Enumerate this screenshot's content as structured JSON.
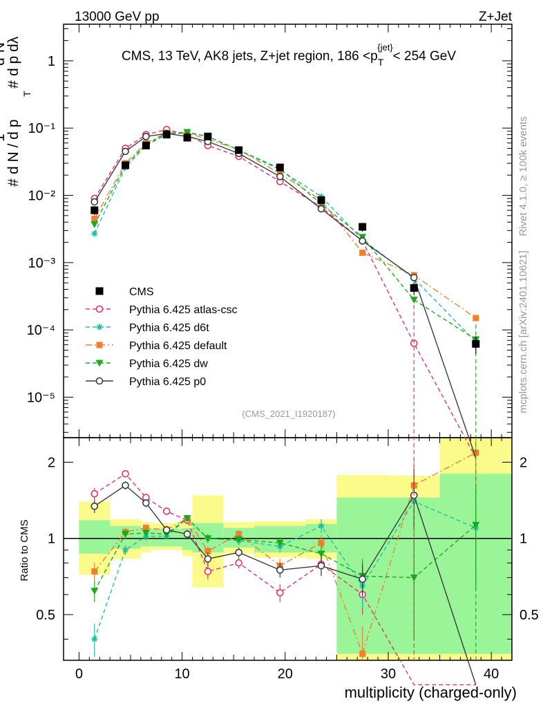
{
  "header": {
    "left": "13000 GeV pp",
    "right": "Z+Jet"
  },
  "side_labels": {
    "rivet": "Rivet 4.1.0, ≥ 100k events",
    "mcplots": "mcplots.cern.ch [arXiv:2401.10621]"
  },
  "colors": {
    "cms": "#000000",
    "atlas_csc": "#e8306a",
    "d6t": "#1fc0a0",
    "default": "#f07f30",
    "dw": "#1aab1a",
    "p0": "#3a3a3a",
    "band_inner": "#99f598",
    "band_outer": "#fbfb8c"
  },
  "chart_data": {
    "type": "line",
    "title": "CMS, 13 TeV, AK8 jets, Z+jet region, 186 <p_T^{jet}< 254 GeV",
    "title_parts": {
      "main": "CMS, 13 TeV, AK8 jets, Z+jet region, 186 <p",
      "sub": "T",
      "sup": "{jet}",
      "tail": "< 254 GeV"
    },
    "xlabel": "multiplicity (charged-only)",
    "ylabel_main": "1/N dN/dλ",
    "ylabel_parts": {
      "one": "1",
      "lhs": "d N / d p",
      "hash": "#",
      "t": "T",
      "top": "d²N",
      "bottom": "d p  dλ"
    },
    "ylabel_ratio": "Ratio to CMS",
    "watermark": "(CMS_2021_I1920187)",
    "xlim": [
      -1.5,
      42
    ],
    "ylim_main": [
      2.5e-06,
      3.5
    ],
    "ylim_ratio": [
      0.33,
      2.5
    ],
    "xticks": [
      0,
      10,
      20,
      30,
      40
    ],
    "xtick_labels": [
      "0",
      "10",
      "20",
      "30",
      "40"
    ],
    "yticks_main": [
      1e-05,
      0.0001,
      0.001,
      0.01,
      0.1,
      1
    ],
    "ytick_labels_main": [
      "10⁻⁵",
      "10⁻⁴",
      "10⁻³",
      "10⁻²",
      "10⁻¹",
      "1"
    ],
    "yticks_ratio": [
      0.5,
      1,
      2
    ],
    "ytick_labels_ratio": [
      "0.5",
      "1",
      "2"
    ],
    "bins": [
      [
        0,
        3
      ],
      [
        3,
        6
      ],
      [
        6,
        7
      ],
      [
        7,
        10
      ],
      [
        10,
        11
      ],
      [
        11,
        14
      ],
      [
        14,
        17
      ],
      [
        17,
        22
      ],
      [
        22,
        25
      ],
      [
        25,
        30
      ],
      [
        30,
        35
      ],
      [
        35,
        42
      ]
    ],
    "x": [
      1.5,
      4.5,
      6.5,
      8.5,
      10.5,
      12.5,
      15.5,
      19.5,
      23.5,
      27.5,
      32.5,
      38.5
    ],
    "band_inner": [
      [
        0.87,
        1.18
      ],
      [
        0.91,
        1.12
      ],
      [
        0.93,
        1.1
      ],
      [
        0.93,
        1.09
      ],
      [
        0.9,
        1.1
      ],
      [
        0.88,
        1.15
      ],
      [
        0.92,
        1.1
      ],
      [
        0.88,
        1.12
      ],
      [
        0.88,
        1.14
      ],
      [
        0.35,
        1.45
      ],
      [
        0.35,
        1.45
      ],
      [
        0.35,
        1.8
      ]
    ],
    "band_outer": [
      [
        0.72,
        1.4
      ],
      [
        0.83,
        1.19
      ],
      [
        0.88,
        1.16
      ],
      [
        0.9,
        1.15
      ],
      [
        0.85,
        1.19
      ],
      [
        0.64,
        1.48
      ],
      [
        0.87,
        1.16
      ],
      [
        0.84,
        1.17
      ],
      [
        0.83,
        1.19
      ],
      [
        0.33,
        1.78
      ],
      [
        0.33,
        1.77
      ],
      [
        0.33,
        2.5
      ]
    ],
    "series": [
      {
        "name": "CMS",
        "key": "cms",
        "style": "data",
        "values": [
          0.006,
          0.028,
          0.055,
          0.08,
          0.072,
          0.075,
          0.047,
          0.026,
          0.0085,
          0.0034,
          0.00042,
          6.2e-05
        ],
        "errors": [
          0.0009,
          0.003,
          0.004,
          0.005,
          0.005,
          0.006,
          0.004,
          0.002,
          0.0009,
          0.0005,
          9e-05,
          1.8e-05
        ]
      },
      {
        "name": "Pythia 6.425 atlas-csc",
        "key": "atlas_csc",
        "style": "dashed",
        "marker": "circle-open",
        "values": [
          0.009,
          0.05,
          0.08,
          0.095,
          0.08,
          0.055,
          0.038,
          0.016,
          0.0067,
          0.0021,
          6.3e-05,
          1e-07
        ],
        "ratio": [
          1.5,
          1.8,
          1.45,
          1.28,
          1.18,
          0.74,
          0.8,
          0.61,
          0.79,
          0.6,
          0.15,
          0.1
        ],
        "ratio_err": [
          0.08,
          0.06,
          0.05,
          0.04,
          0.04,
          0.05,
          0.04,
          0.05,
          0.07,
          0.1,
          0.1,
          0.1
        ]
      },
      {
        "name": "Pythia 6.425 d6t",
        "key": "d6t",
        "style": "dashed",
        "marker": "star",
        "values": [
          0.0027,
          0.026,
          0.055,
          0.08,
          0.085,
          0.075,
          0.047,
          0.024,
          0.0096,
          0.0022,
          0.00058,
          6.6e-05
        ],
        "ratio": [
          0.4,
          0.9,
          1.02,
          1.02,
          1.2,
          1.0,
          0.98,
          0.93,
          1.12,
          0.65,
          1.4,
          1.1
        ],
        "ratio_err": [
          0.06,
          0.04,
          0.04,
          0.03,
          0.04,
          0.04,
          0.04,
          0.05,
          0.07,
          0.12,
          0.35,
          0.45
        ]
      },
      {
        "name": "Pythia 6.425 default",
        "key": "default",
        "style": "dashdot",
        "marker": "square",
        "values": [
          0.0045,
          0.03,
          0.06,
          0.085,
          0.085,
          0.068,
          0.048,
          0.021,
          0.0085,
          0.0014,
          0.00065,
          0.00015
        ],
        "ratio": [
          0.74,
          1.06,
          1.1,
          1.08,
          1.2,
          0.89,
          1.04,
          0.78,
          0.96,
          0.35,
          1.62,
          2.18
        ],
        "ratio_err": [
          0.06,
          0.04,
          0.04,
          0.03,
          0.04,
          0.04,
          0.04,
          0.05,
          0.07,
          0.1,
          0.4,
          0.8
        ]
      },
      {
        "name": "Pythia 6.425 dw",
        "key": "dw",
        "style": "dashed",
        "marker": "triangle-down",
        "values": [
          0.0037,
          0.028,
          0.057,
          0.083,
          0.087,
          0.075,
          0.047,
          0.025,
          0.0074,
          0.0024,
          0.00028,
          7.2e-05
        ],
        "ratio": [
          0.62,
          1.04,
          1.05,
          1.04,
          1.2,
          1.0,
          0.99,
          0.96,
          0.87,
          0.71,
          0.7,
          1.13
        ],
        "ratio_err": [
          0.06,
          0.04,
          0.04,
          0.03,
          0.04,
          0.04,
          0.04,
          0.05,
          0.07,
          0.12,
          0.3,
          0.5
        ]
      },
      {
        "name": "Pythia 6.425 p0",
        "key": "p0",
        "style": "solid",
        "marker": "circle-open",
        "values": [
          0.008,
          0.045,
          0.075,
          0.083,
          0.075,
          0.063,
          0.042,
          0.019,
          0.0063,
          0.0021,
          0.0006,
          1e-07
        ],
        "ratio": [
          1.34,
          1.62,
          1.38,
          1.08,
          1.04,
          0.83,
          0.88,
          0.75,
          0.78,
          0.69,
          1.48,
          0.1
        ],
        "ratio_err": [
          0.08,
          0.06,
          0.05,
          0.04,
          0.04,
          0.05,
          0.04,
          0.05,
          0.07,
          0.1,
          0.4,
          0.1
        ]
      }
    ]
  }
}
